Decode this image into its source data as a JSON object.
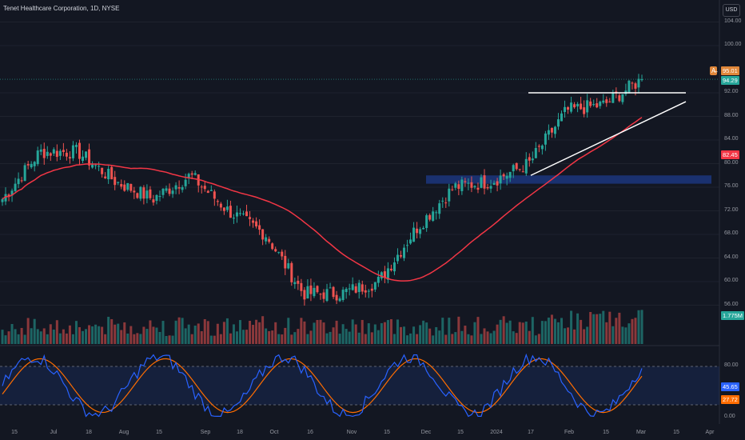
{
  "title": {
    "name": "Tenet Healthcare Corporation",
    "interval": "1D",
    "exchange": "NYSE",
    "full": "Tenet Healthcare Corporation, 1D, NYSE"
  },
  "currency": "USD",
  "price_axis": [
    "104.00",
    "100.00",
    "92.00",
    "88.00",
    "84.00",
    "80.00",
    "76.00",
    "72.00",
    "68.00",
    "64.00",
    "60.00",
    "56.00"
  ],
  "price_tags": {
    "high": "95.01",
    "last": "94.29",
    "ma": "82.45",
    "volume": "1.775M"
  },
  "alert_icon": "alert-icon",
  "osc_axis": [
    "80.00",
    "0.00"
  ],
  "osc_tags": {
    "k": "45.65",
    "d": "27.72"
  },
  "date_axis": [
    "15",
    "Jul",
    "18",
    "Aug",
    "15",
    "Sep",
    "18",
    "Oct",
    "16",
    "Nov",
    "15",
    "Dec",
    "15",
    "2024",
    "17",
    "Feb",
    "15",
    "Mar",
    "15",
    "Apr"
  ],
  "colors": {
    "up": "#26a69a",
    "down": "#ef5350",
    "ma": "#f23645",
    "band": "#2962ff",
    "osc_k": "#2962ff",
    "osc_d": "#ff6d00"
  },
  "chart_data": {
    "type": "candlestick",
    "series_close_samples": [
      {
        "date": "Jun 15",
        "close": 74
      },
      {
        "date": "Jul",
        "close": 82
      },
      {
        "date": "Jul 18",
        "close": 82
      },
      {
        "date": "Aug",
        "close": 77
      },
      {
        "date": "Aug 15",
        "close": 74
      },
      {
        "date": "Sep",
        "close": 78
      },
      {
        "date": "Sep 18",
        "close": 72
      },
      {
        "date": "Oct",
        "close": 68
      },
      {
        "date": "Oct 16",
        "close": 58
      },
      {
        "date": "Nov",
        "close": 58
      },
      {
        "date": "Nov 15",
        "close": 60
      },
      {
        "date": "Dec",
        "close": 69
      },
      {
        "date": "Dec 15",
        "close": 76
      },
      {
        "date": "2024",
        "close": 77
      },
      {
        "date": "Jan 17",
        "close": 80
      },
      {
        "date": "Feb",
        "close": 89
      },
      {
        "date": "Feb 15",
        "close": 90
      },
      {
        "date": "Mar",
        "close": 94.29
      }
    ],
    "moving_average_last": 82.45,
    "support_zone": [
      77,
      78
    ],
    "resistance_line": 92,
    "ylim": [
      56,
      104
    ]
  }
}
